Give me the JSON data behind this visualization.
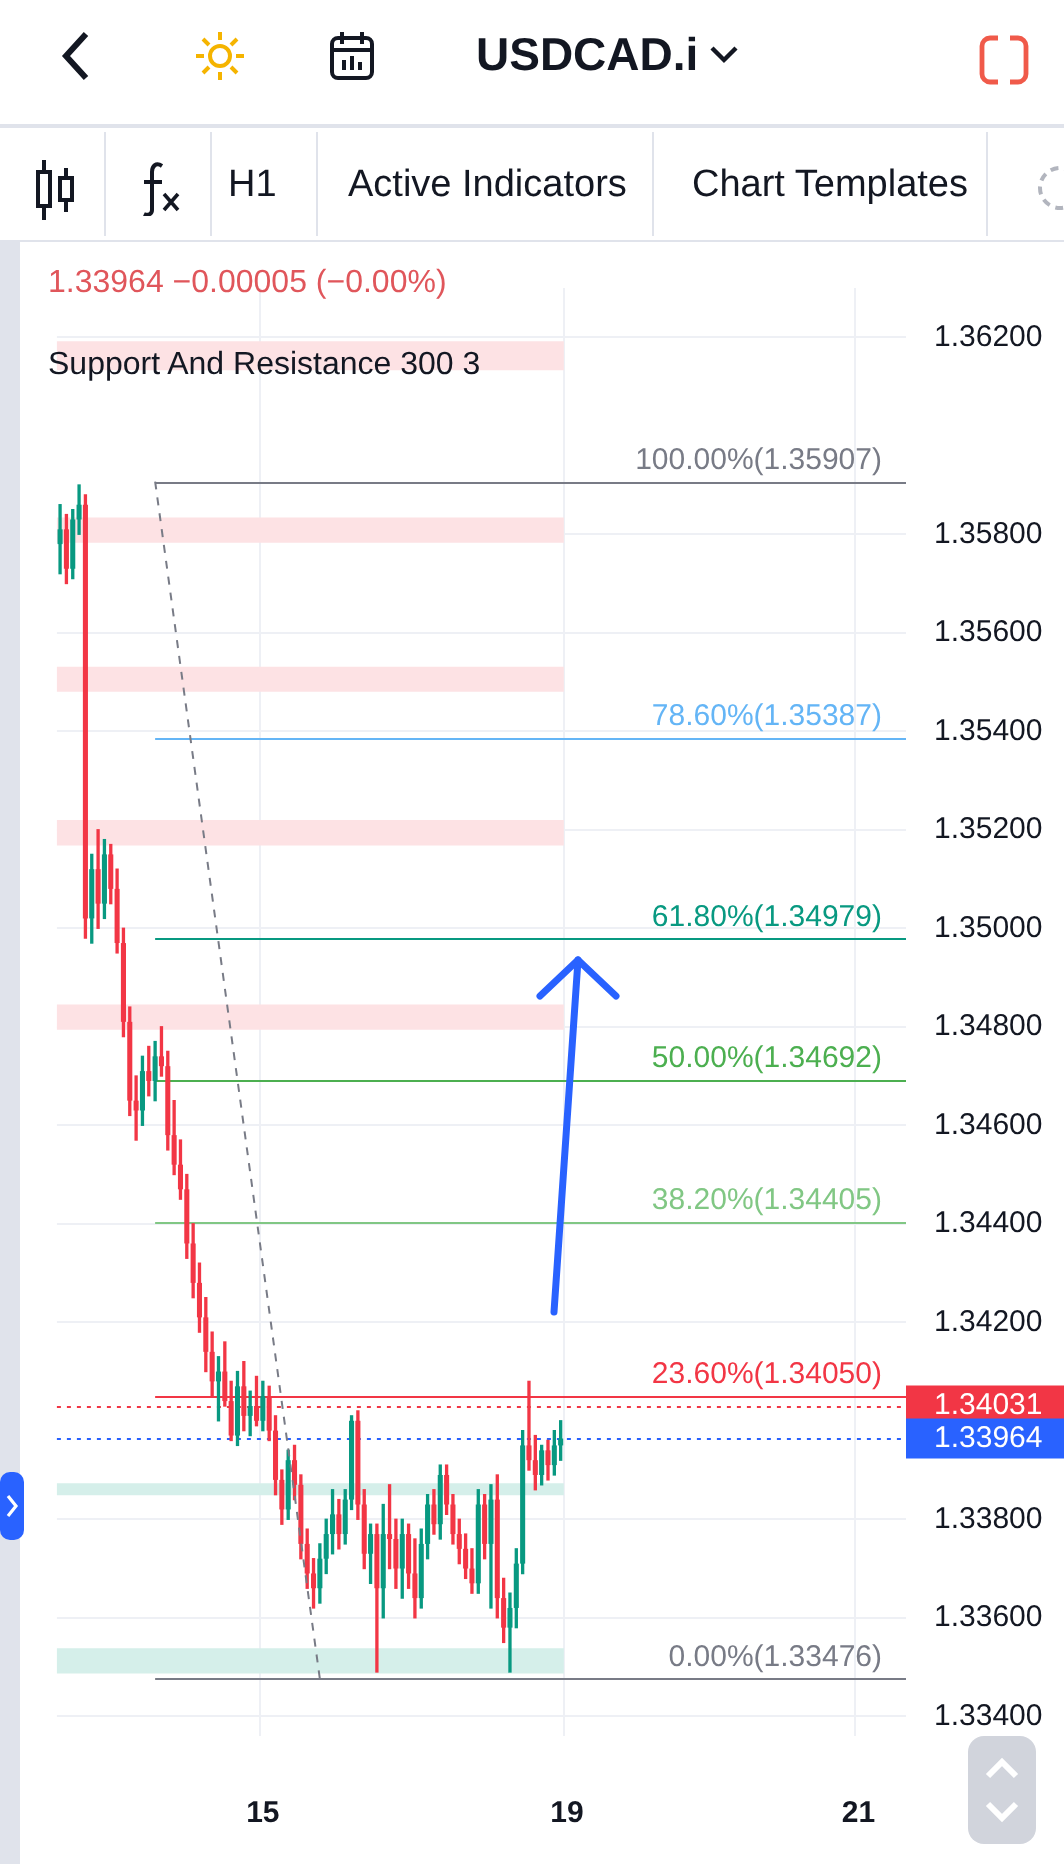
{
  "chart_data": {
    "type": "candlestick",
    "annotations": [
      "USDCAD.i",
      "H1",
      "Active Indicators",
      "Chart Templates",
      "1.33964 −0.00005 (−0.00%)",
      "Support And Resistance 300 3"
    ],
    "categories": [
      null,
      null,
      null,
      null,
      null,
      null,
      null,
      null,
      null,
      null,
      null,
      null,
      null,
      null,
      null,
      null,
      null,
      null,
      null,
      null,
      null,
      null,
      null,
      null,
      null,
      null,
      null,
      null,
      null,
      null,
      null,
      null,
      "15",
      null,
      null,
      null,
      null,
      null,
      null,
      null,
      null,
      null,
      null,
      null,
      null,
      null,
      null,
      null,
      null,
      null,
      null,
      null,
      null,
      null,
      null,
      null,
      null,
      null,
      null,
      null,
      null,
      null,
      null,
      null,
      null,
      null,
      null,
      null,
      null,
      null,
      null,
      null,
      null,
      null,
      null,
      null,
      null,
      null,
      null,
      null,
      "19",
      null,
      null,
      null,
      null,
      null,
      null,
      null,
      null,
      null,
      null,
      null,
      null,
      null,
      null,
      null,
      null,
      null,
      null,
      null,
      null,
      null,
      null,
      null,
      null,
      null,
      null,
      null,
      null,
      null,
      null,
      null,
      null,
      null,
      null,
      null,
      null,
      null,
      null,
      null,
      null,
      null,
      null,
      null,
      null,
      null,
      "21",
      null,
      null,
      null,
      null,
      null,
      null,
      null
    ],
    "ohlc": [
      [
        1.3578,
        1.3586,
        1.3572,
        1.3581
      ],
      [
        1.3581,
        1.3584,
        1.357,
        1.3573
      ],
      [
        1.3573,
        1.3585,
        1.3571,
        1.3583
      ],
      [
        1.3583,
        1.359,
        1.358,
        1.3586
      ],
      [
        1.3586,
        1.3588,
        1.3498,
        1.3502
      ],
      [
        1.3502,
        1.3515,
        1.3497,
        1.3512
      ],
      [
        1.3512,
        1.352,
        1.35,
        1.3505
      ],
      [
        1.3505,
        1.3518,
        1.3502,
        1.3515
      ],
      [
        1.3515,
        1.3517,
        1.3505,
        1.3508
      ],
      [
        1.3508,
        1.3512,
        1.3495,
        1.3497
      ],
      [
        1.3497,
        1.35,
        1.3478,
        1.3481
      ],
      [
        1.3481,
        1.3484,
        1.3462,
        1.3465
      ],
      [
        1.3465,
        1.347,
        1.3457,
        1.3463
      ],
      [
        1.3463,
        1.3474,
        1.346,
        1.3471
      ],
      [
        1.3471,
        1.3476,
        1.3466,
        1.3469
      ],
      [
        1.3469,
        1.3477,
        1.3465,
        1.3474
      ],
      [
        1.3474,
        1.348,
        1.347,
        1.3472
      ],
      [
        1.3472,
        1.3475,
        1.3455,
        1.3458
      ],
      [
        1.3458,
        1.3465,
        1.345,
        1.3452
      ],
      [
        1.3452,
        1.3457,
        1.3445,
        1.3447
      ],
      [
        1.3447,
        1.345,
        1.3433,
        1.3436
      ],
      [
        1.3436,
        1.344,
        1.3425,
        1.3428
      ],
      [
        1.3428,
        1.3432,
        1.3418,
        1.3421
      ],
      [
        1.3421,
        1.3425,
        1.341,
        1.3414
      ],
      [
        1.3414,
        1.3418,
        1.3405,
        1.3408
      ],
      [
        1.3408,
        1.3413,
        1.34,
        1.341
      ],
      [
        1.341,
        1.3416,
        1.3403,
        1.3404
      ],
      [
        1.3404,
        1.3408,
        1.3396,
        1.3397
      ],
      [
        1.3397,
        1.341,
        1.3395,
        1.3407
      ],
      [
        1.3407,
        1.3412,
        1.3398,
        1.3401
      ],
      [
        1.3401,
        1.3406,
        1.3397,
        1.3403
      ],
      [
        1.3403,
        1.3409,
        1.3399,
        1.34
      ],
      [
        1.34,
        1.3408,
        1.3398,
        1.3405
      ],
      [
        1.3405,
        1.3407,
        1.3396,
        1.3398
      ],
      [
        1.3398,
        1.3401,
        1.3385,
        1.3388
      ],
      [
        1.3388,
        1.339,
        1.3379,
        1.3382
      ],
      [
        1.3382,
        1.3394,
        1.338,
        1.3392
      ],
      [
        1.3392,
        1.3395,
        1.3384,
        1.3387
      ],
      [
        1.3387,
        1.3389,
        1.3372,
        1.3375
      ],
      [
        1.3375,
        1.3378,
        1.3366,
        1.3369
      ],
      [
        1.3369,
        1.3372,
        1.3362,
        1.3366
      ],
      [
        1.3366,
        1.3375,
        1.3363,
        1.3372
      ],
      [
        1.3372,
        1.338,
        1.3369,
        1.3377
      ],
      [
        1.3377,
        1.3386,
        1.3373,
        1.3381
      ],
      [
        1.3381,
        1.3384,
        1.3374,
        1.3377
      ],
      [
        1.3377,
        1.3386,
        1.3375,
        1.3384
      ],
      [
        1.3384,
        1.3401,
        1.3382,
        1.34
      ],
      [
        1.34,
        1.3402,
        1.338,
        1.3383
      ],
      [
        1.3383,
        1.3386,
        1.337,
        1.3373
      ],
      [
        1.3373,
        1.3379,
        1.3367,
        1.3377
      ],
      [
        1.3377,
        1.3379,
        1.3349,
        1.3366
      ],
      [
        1.3366,
        1.3383,
        1.336,
        1.3377
      ],
      [
        1.3377,
        1.3387,
        1.337,
        1.3376
      ],
      [
        1.3376,
        1.338,
        1.3366,
        1.337
      ],
      [
        1.337,
        1.338,
        1.3364,
        1.3377
      ],
      [
        1.3377,
        1.3379,
        1.3366,
        1.3369
      ],
      [
        1.3369,
        1.3376,
        1.336,
        1.3364
      ],
      [
        1.3364,
        1.3378,
        1.3362,
        1.3375
      ],
      [
        1.3375,
        1.3385,
        1.3372,
        1.3383
      ],
      [
        1.3383,
        1.3386,
        1.3377,
        1.3379
      ],
      [
        1.3379,
        1.3391,
        1.3376,
        1.3389
      ],
      [
        1.3389,
        1.3391,
        1.3381,
        1.3383
      ],
      [
        1.3383,
        1.3385,
        1.3375,
        1.3377
      ],
      [
        1.3377,
        1.338,
        1.3371,
        1.3374
      ],
      [
        1.3374,
        1.3377,
        1.3368,
        1.337
      ],
      [
        1.337,
        1.3374,
        1.3365,
        1.3367
      ],
      [
        1.3367,
        1.3386,
        1.3365,
        1.3383
      ],
      [
        1.3383,
        1.3385,
        1.3372,
        1.3375
      ],
      [
        1.3375,
        1.3387,
        1.3362,
        1.3384
      ],
      [
        1.3384,
        1.3389,
        1.336,
        1.3364
      ],
      [
        1.3364,
        1.3368,
        1.3355,
        1.3358
      ],
      [
        1.3358,
        1.3365,
        1.3349,
        1.3362
      ],
      [
        1.3362,
        1.3374,
        1.3358,
        1.3371
      ],
      [
        1.3371,
        1.3398,
        1.3369,
        1.3395
      ],
      [
        1.3395,
        1.3408,
        1.339,
        1.3392
      ],
      [
        1.3392,
        1.3397,
        1.3386,
        1.3389
      ],
      [
        1.3389,
        1.3395,
        1.3387,
        1.3394
      ],
      [
        1.3394,
        1.3396,
        1.3388,
        1.3391
      ],
      [
        1.3391,
        1.3398,
        1.3389,
        1.3395
      ],
      [
        1.3395,
        1.34,
        1.3392,
        1.33964
      ],
      null,
      null,
      null,
      null,
      null,
      null,
      null,
      null,
      null,
      null,
      null,
      null,
      null,
      null,
      null,
      null,
      null,
      null,
      null,
      null,
      null,
      null,
      null,
      null,
      null,
      null,
      null,
      null,
      null,
      null,
      null,
      null,
      null,
      null,
      null,
      null,
      null,
      null,
      null,
      null,
      null,
      null,
      null,
      null,
      null,
      null,
      null,
      null,
      null,
      null,
      null,
      null,
      null,
      null
    ],
    "series": [
      {
        "type": "line",
        "color": "#787b86",
        "line_style": "dashed",
        "values": [
          null,
          null,
          null,
          null,
          null,
          null,
          null,
          null,
          null,
          null,
          null,
          null,
          null,
          null,
          null,
          1.35907,
          null,
          null,
          null,
          null,
          null,
          null,
          null,
          null,
          null,
          null,
          null,
          null,
          null,
          null,
          null,
          null,
          null,
          null,
          null,
          null,
          null,
          null,
          null,
          null,
          null,
          1.33476,
          null,
          null,
          null,
          null,
          null,
          null,
          null,
          null,
          null,
          null,
          null,
          null,
          null,
          null,
          null,
          null,
          null,
          null,
          null,
          null,
          null,
          null,
          null,
          null,
          null,
          null,
          null,
          null,
          null,
          null,
          null,
          null,
          null,
          null,
          null,
          null,
          null,
          null,
          null,
          null,
          null,
          null,
          null,
          null,
          null,
          null,
          null,
          null,
          null,
          null,
          null,
          null,
          null,
          null,
          null,
          null,
          null,
          null,
          null,
          null,
          null,
          null,
          null,
          null,
          null,
          null,
          null,
          null,
          null,
          null,
          null,
          null,
          null,
          null,
          null,
          null,
          null,
          null,
          null,
          null,
          null,
          null,
          null,
          null,
          null,
          null,
          null,
          null,
          null,
          null,
          null,
          null
        ]
      }
    ],
    "ylim": [
      1.3336,
      1.363
    ],
    "yticks": [
      {
        "value": 1.334,
        "label": "1.33400"
      },
      {
        "value": 1.336,
        "label": "1.33600"
      },
      {
        "value": 1.338,
        "label": "1.33800"
      },
      {
        "value": 1.342,
        "label": "1.34200"
      },
      {
        "value": 1.344,
        "label": "1.34400"
      },
      {
        "value": 1.346,
        "label": "1.34600"
      },
      {
        "value": 1.348,
        "label": "1.34800"
      },
      {
        "value": 1.35,
        "label": "1.35000"
      },
      {
        "value": 1.352,
        "label": "1.35200"
      },
      {
        "value": 1.354,
        "label": "1.35400"
      },
      {
        "value": 1.356,
        "label": "1.35600"
      },
      {
        "value": 1.358,
        "label": "1.35800"
      },
      {
        "value": 1.362,
        "label": "1.36200"
      }
    ],
    "ref_lines": [
      {
        "axis": "y",
        "value": 1.35907,
        "label": "100.00%(1.35907)",
        "color": "#787b86",
        "line_style": "solid"
      },
      {
        "axis": "y",
        "value": 1.35387,
        "label": "78.60%(1.35387)",
        "color": "#64b5f6",
        "line_style": "solid"
      },
      {
        "axis": "y",
        "value": 1.34979,
        "label": "61.80%(1.34979)",
        "color": "#089981",
        "line_style": "solid"
      },
      {
        "axis": "y",
        "value": 1.34692,
        "label": "50.00%(1.34692)",
        "color": "#4caf50",
        "line_style": "solid"
      },
      {
        "axis": "y",
        "value": 1.34405,
        "label": "38.20%(1.34405)",
        "color": "#81c784",
        "line_style": "solid"
      },
      {
        "axis": "y",
        "value": 1.3405,
        "label": "23.60%(1.34050)",
        "color": "#f23645",
        "line_style": "solid"
      },
      {
        "axis": "y",
        "value": 1.33476,
        "label": "0.00%(1.33476)",
        "color": "#787b86",
        "line_style": "solid"
      },
      {
        "axis": "y",
        "value": 1.34031,
        "label": "1.34031",
        "color": "#f23645",
        "line_style": "dotted"
      },
      {
        "axis": "y",
        "value": 1.33964,
        "label": "1.33964",
        "color": "#2962ff",
        "line_style": "dotted"
      }
    ],
    "bands": [
      {
        "axis": "y",
        "from": 1.36133,
        "to": 1.36192,
        "color": "#fde2e4"
      },
      {
        "axis": "y",
        "from": 1.35783,
        "to": 1.35834,
        "color": "#fde2e4"
      },
      {
        "axis": "y",
        "from": 1.3548,
        "to": 1.35531,
        "color": "#fde2e4"
      },
      {
        "axis": "y",
        "from": 1.35168,
        "to": 1.3522,
        "color": "#fde2e4"
      },
      {
        "axis": "y",
        "from": 1.34794,
        "to": 1.34845,
        "color": "#fde2e4"
      },
      {
        "axis": "y",
        "from": 1.33849,
        "to": 1.33873,
        "color": "#d5efea"
      },
      {
        "axis": "y",
        "from": 1.33487,
        "to": 1.33538,
        "color": "#d5efea"
      }
    ],
    "grid": true,
    "legend": false
  }
}
